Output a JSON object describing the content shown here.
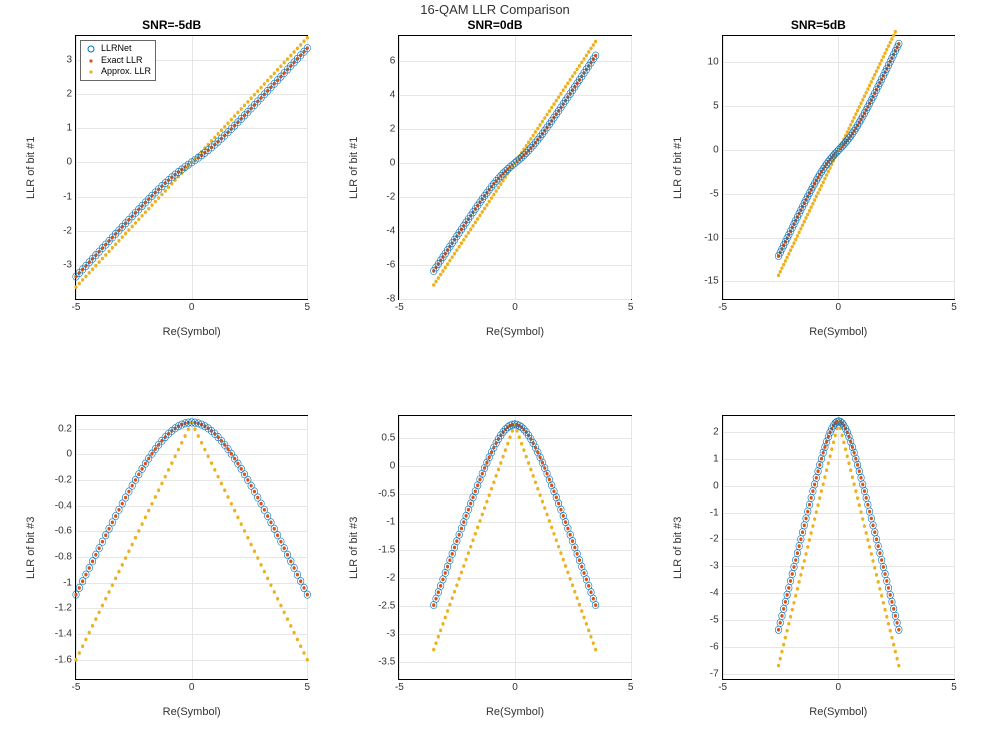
{
  "main_title": "16-QAM LLR Comparison",
  "colors": {
    "llrnet": "#0072bd",
    "exact": "#d95319",
    "approx": "#edb120",
    "grid": "#e6e6e6",
    "axis": "#000000",
    "bg": "#ffffff"
  },
  "markers": {
    "llrnet": {
      "type": "circle",
      "size": 4,
      "fill": "none",
      "stroke_width": 1
    },
    "exact": {
      "type": "dot",
      "size": 2.2
    },
    "approx": {
      "type": "dot",
      "size": 2.2
    }
  },
  "legend": {
    "items": [
      {
        "key": "llrnet",
        "label": "LLRNet"
      },
      {
        "key": "exact",
        "label": "Exact LLR"
      },
      {
        "key": "approx",
        "label": "Approx. LLR"
      }
    ]
  },
  "xlabel": "Re(Symbol)",
  "font": {
    "title_size": 13,
    "subtitle_size": 12,
    "label_size": 11,
    "tick_size": 10
  },
  "panels": [
    {
      "id": "p11",
      "title": "SNR=-5dB",
      "ylabel": "LLR of bit #1",
      "show_legend": true,
      "xlim": [
        -5,
        5
      ],
      "ylim": [
        -4,
        3.7
      ],
      "xticks": [
        -5,
        0,
        5
      ],
      "yticks": [
        -3,
        -2,
        -1,
        0,
        1,
        2,
        3
      ],
      "curve": "linear_soft",
      "x_extent": [
        -5,
        5
      ],
      "slope": 0.73,
      "soft_k": 0.35,
      "soft_w": 1.2
    },
    {
      "id": "p12",
      "title": "SNR=0dB",
      "ylabel": "LLR of bit #1",
      "show_legend": false,
      "xlim": [
        -5,
        5
      ],
      "ylim": [
        -8,
        7.5
      ],
      "xticks": [
        -5,
        0,
        5
      ],
      "yticks": [
        -8,
        -6,
        -4,
        -2,
        0,
        2,
        4,
        6
      ],
      "curve": "linear_soft",
      "x_extent": [
        -3.5,
        3.5
      ],
      "slope": 2.05,
      "soft_k": 0.45,
      "soft_w": 0.9
    },
    {
      "id": "p13",
      "title": "SNR=5dB",
      "ylabel": "LLR of bit #1",
      "show_legend": false,
      "xlim": [
        -5,
        5
      ],
      "ylim": [
        -17,
        13
      ],
      "xticks": [
        -5,
        0,
        5
      ],
      "yticks": [
        -15,
        -10,
        -5,
        0,
        5,
        10
      ],
      "curve": "linear_soft",
      "x_extent": [
        -2.6,
        2.6
      ],
      "slope": 5.5,
      "soft_k": 0.5,
      "soft_w": 0.8
    },
    {
      "id": "p21",
      "title": "",
      "ylabel": "LLR of bit #3",
      "show_legend": false,
      "xlim": [
        -5,
        5
      ],
      "ylim": [
        -1.75,
        0.3
      ],
      "xticks": [
        -5,
        0,
        5
      ],
      "yticks": [
        -1.6,
        -1.4,
        -1.2,
        -1.0,
        -0.8,
        -0.6,
        -0.4,
        -0.2,
        0,
        0.2
      ],
      "curve": "tent",
      "x_extent": [
        -5,
        5
      ],
      "peak": 0.25,
      "slope_down": 0.37,
      "round_w": 2.0,
      "approx_slope_down": 0.37,
      "approx_peak": 0.25
    },
    {
      "id": "p22",
      "title": "",
      "ylabel": "LLR of bit #3",
      "show_legend": false,
      "xlim": [
        -5,
        5
      ],
      "ylim": [
        -3.8,
        0.9
      ],
      "xticks": [
        -5,
        0,
        5
      ],
      "yticks": [
        -3.5,
        -3,
        -2.5,
        -2,
        -1.5,
        -1,
        -0.5,
        0,
        0.5
      ],
      "curve": "tent",
      "x_extent": [
        -3.5,
        3.5
      ],
      "peak": 0.75,
      "slope_down": 1.15,
      "round_w": 1.0,
      "approx_slope_down": 1.15,
      "approx_peak": 0.75
    },
    {
      "id": "p23",
      "title": "",
      "ylabel": "LLR of bit #3",
      "show_legend": false,
      "xlim": [
        -5,
        5
      ],
      "ylim": [
        -7.2,
        2.6
      ],
      "xticks": [
        -5,
        0,
        5
      ],
      "yticks": [
        -7,
        -6,
        -5,
        -4,
        -3,
        -2,
        -1,
        0,
        1,
        2
      ],
      "curve": "tent",
      "x_extent": [
        -2.6,
        2.6
      ],
      "peak": 2.4,
      "slope_down": 3.5,
      "round_w": 0.55,
      "approx_slope_down": 3.5,
      "approx_peak": 2.4
    }
  ]
}
